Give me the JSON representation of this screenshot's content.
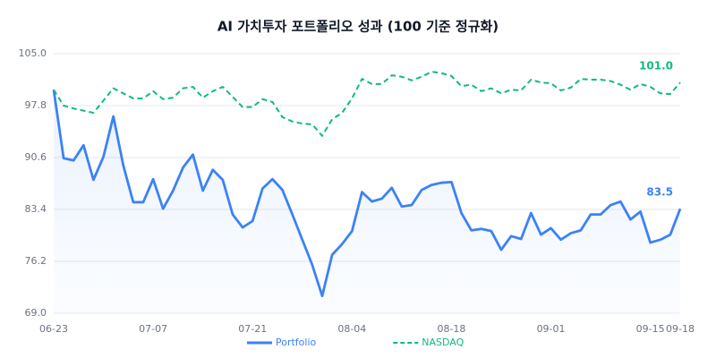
{
  "chart_data": {
    "type": "line",
    "title": "AI 가치투자 포트폴리오 성과 (100 기준 정규화)",
    "categories": [
      "06-23",
      null,
      null,
      null,
      null,
      null,
      null,
      null,
      null,
      null,
      "07-07",
      null,
      null,
      null,
      null,
      null,
      null,
      null,
      null,
      null,
      "07-21",
      null,
      null,
      null,
      null,
      null,
      null,
      null,
      null,
      null,
      "08-04",
      null,
      null,
      null,
      null,
      null,
      null,
      null,
      null,
      null,
      "08-18",
      null,
      null,
      null,
      null,
      null,
      null,
      null,
      null,
      null,
      "09-01",
      null,
      null,
      null,
      null,
      null,
      null,
      null,
      null,
      null,
      "09-15",
      null,
      null,
      "09-18"
    ],
    "series": [
      {
        "name": "Portfolio",
        "color": "#3b82f6",
        "dashed": false,
        "area": true,
        "end_label": "83.5",
        "values": [
          100.0,
          90.5,
          90.2,
          92.3,
          87.5,
          90.7,
          96.3,
          89.5,
          84.4,
          84.4,
          87.6,
          83.5,
          86.0,
          89.2,
          91.0,
          86.0,
          88.9,
          87.5,
          82.7,
          80.9,
          81.8,
          86.3,
          87.6,
          86.1,
          82.7,
          79.2,
          75.7,
          71.4,
          77.1,
          78.6,
          80.4,
          85.8,
          84.5,
          84.9,
          86.4,
          83.8,
          84.0,
          86.1,
          86.8,
          87.1,
          87.2,
          82.9,
          80.5,
          80.7,
          80.4,
          77.8,
          79.7,
          79.3,
          82.9,
          79.9,
          80.8,
          79.2,
          80.1,
          80.5,
          82.7,
          82.7,
          84.0,
          84.5,
          82.0,
          83.1,
          78.8,
          79.2,
          79.9,
          83.5
        ]
      },
      {
        "name": "NASDAQ",
        "color": "#10b981",
        "dashed": true,
        "area": false,
        "end_label": "101.0",
        "values": [
          100.0,
          97.8,
          97.4,
          97.1,
          96.8,
          98.5,
          100.2,
          99.5,
          98.8,
          98.8,
          99.8,
          98.7,
          98.9,
          100.2,
          100.4,
          98.9,
          99.8,
          100.4,
          99.0,
          97.6,
          97.6,
          98.7,
          98.3,
          96.2,
          95.6,
          95.3,
          95.2,
          93.6,
          95.9,
          96.8,
          98.8,
          101.5,
          100.8,
          100.8,
          102.0,
          101.8,
          101.3,
          101.8,
          102.5,
          102.3,
          101.9,
          100.5,
          100.7,
          99.8,
          100.2,
          99.5,
          100.0,
          99.9,
          101.4,
          101.0,
          100.9,
          99.9,
          100.3,
          101.5,
          101.4,
          101.4,
          101.2,
          100.7,
          100.0,
          100.8,
          100.4,
          99.5,
          99.4,
          101.0
        ]
      }
    ],
    "ylim": [
      69.0,
      105.0
    ],
    "yticks": [
      {
        "value": 69.0,
        "label": "69.0"
      },
      {
        "value": 76.2,
        "label": "76.2"
      },
      {
        "value": 83.4,
        "label": "83.4"
      },
      {
        "value": 90.6,
        "label": "90.6"
      },
      {
        "value": 97.8,
        "label": "97.8"
      },
      {
        "value": 105.0,
        "label": "105.0"
      }
    ],
    "grid": true,
    "legend": "bottom"
  }
}
